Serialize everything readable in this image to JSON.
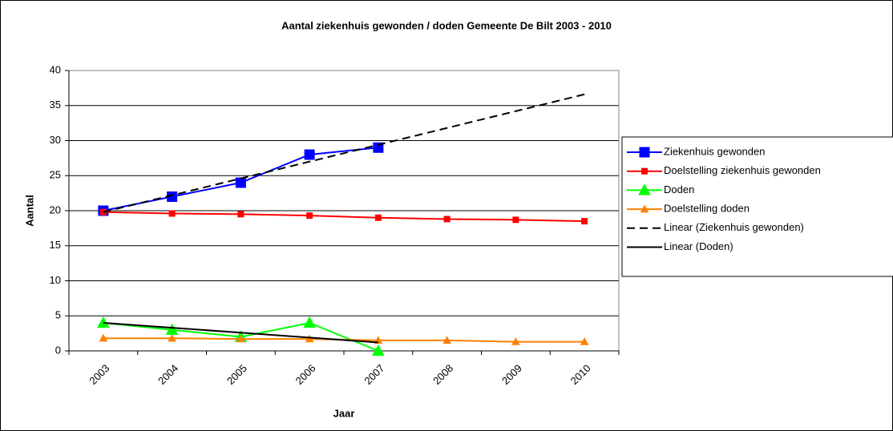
{
  "chart_data": {
    "type": "line",
    "title": "Aantal ziekenhuis gewonden / doden Gemeente De Bilt 2003 - 2010",
    "x_label": "Jaar",
    "y_label": "Aantal",
    "categories": [
      "2003",
      "2004",
      "2005",
      "2006",
      "2007",
      "2008",
      "2009",
      "2010"
    ],
    "ylim": [
      0,
      40
    ],
    "yticks": [
      0,
      5,
      10,
      15,
      20,
      25,
      30,
      35,
      40
    ],
    "grid": true,
    "legend": "right",
    "series": [
      {
        "name": "Ziekenhuis gewonden",
        "color": "#0000ff",
        "marker": "square",
        "values": [
          20,
          22,
          24,
          28,
          29,
          null,
          null,
          null
        ]
      },
      {
        "name": "Doelstelling ziekenhuis gewonden",
        "color": "#ff0000",
        "marker": "small-square",
        "values": [
          19.8,
          19.6,
          19.5,
          19.3,
          19.0,
          18.8,
          18.7,
          18.5
        ]
      },
      {
        "name": "Doden",
        "color": "#00ff00",
        "marker": "triangle",
        "values": [
          4,
          3,
          2,
          4,
          0,
          null,
          null,
          null
        ]
      },
      {
        "name": "Doelstelling doden",
        "color": "#ff8000",
        "marker": "small-triangle",
        "values": [
          1.8,
          1.8,
          1.7,
          1.7,
          1.5,
          1.5,
          1.3,
          1.3
        ]
      },
      {
        "name": "Linear (Ziekenhuis gewonden)",
        "color": "#000000",
        "dash": true,
        "values": [
          19.8,
          22.2,
          24.6,
          27.0,
          29.4,
          31.8,
          34.2,
          36.6
        ]
      },
      {
        "name": "Linear (Doden)",
        "color": "#000000",
        "values": [
          4.0,
          3.3,
          2.6,
          1.9,
          1.2,
          null,
          null,
          null
        ]
      }
    ]
  }
}
